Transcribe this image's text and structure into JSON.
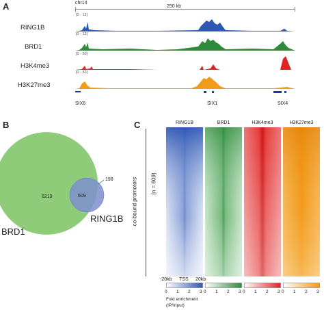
{
  "panel_a": {
    "letter": "A",
    "chrom": "chr14",
    "scale": "250 kb",
    "tracks": [
      {
        "name": "RING1B",
        "range": "[0 - 13]",
        "color": "#2f57b5"
      },
      {
        "name": "BRD1",
        "range": "[0 - 13]",
        "color": "#2e8b3c"
      },
      {
        "name": "H3K4me3",
        "range": "[0 - 50]",
        "color": "#e02424"
      },
      {
        "name": "H3K27me3",
        "range": "[0 - 50]",
        "color": "#f29a1a"
      }
    ],
    "genes": [
      "SIX6",
      "SIX1",
      "SIX4"
    ]
  },
  "panel_b": {
    "letter": "B",
    "brd1_label": "BRD1",
    "ring1b_label": "RING1B",
    "brd1_only": "6219",
    "overlap": "609",
    "ring1b_only": "198",
    "brd1_color": "#8fcc7a",
    "ring1b_color": "#7d8fcf"
  },
  "panel_c": {
    "letter": "C",
    "side_label": "co-bound promoters",
    "n_label": "(n = 609)",
    "heatmaps": [
      {
        "name": "RING1B",
        "color": "#2f57b5"
      },
      {
        "name": "BRD1",
        "color": "#2e8b3c"
      },
      {
        "name": "H3K4me3",
        "color": "#e02424"
      },
      {
        "name": "H3K27me3",
        "color": "#f29a1a"
      }
    ],
    "x_left": "-20kb",
    "x_mid": "TSS",
    "x_right": "20kb",
    "scale_ticks": [
      "0",
      "1",
      "2",
      "3"
    ],
    "fold_line1": "Fold enrichment",
    "fold_line2": "(IP/Input)"
  }
}
